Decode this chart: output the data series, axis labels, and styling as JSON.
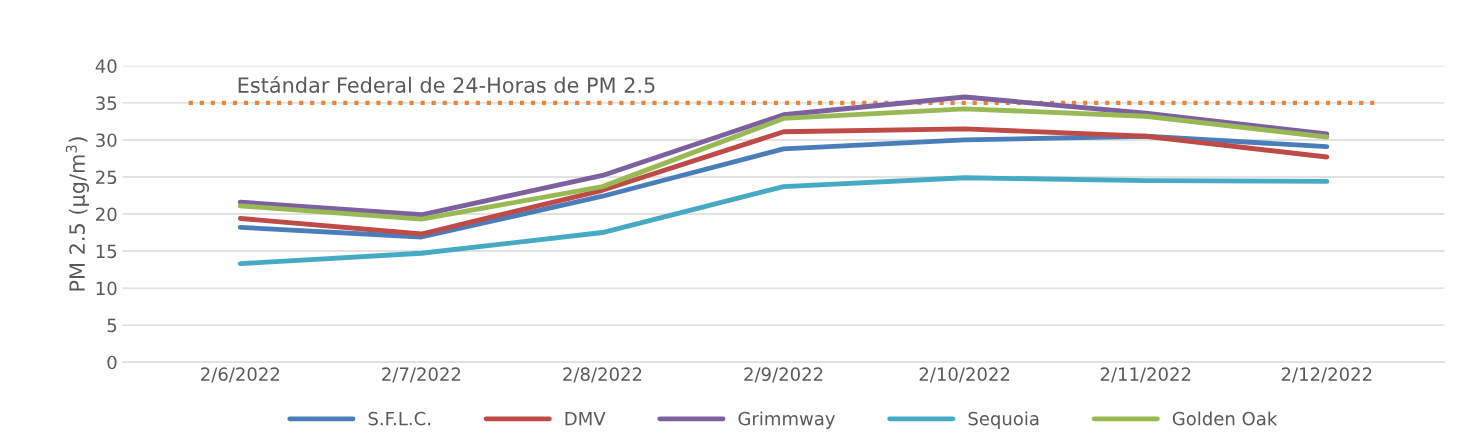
{
  "chart_data": {
    "type": "line",
    "ylabel": "PM 2.5 (µg/m$^{3}$)",
    "categories": [
      "2/6/2022",
      "2/7/2022",
      "2/8/2022",
      "2/9/2022",
      "2/10/2022",
      "2/11/2022",
      "2/12/2022"
    ],
    "series": [
      {
        "name": "S.F.L.C.",
        "color": "#4a7ebb",
        "values": [
          18.2,
          16.9,
          22.4,
          28.8,
          30.0,
          30.5,
          29.1
        ]
      },
      {
        "name": "DMV",
        "color": "#be4b48",
        "values": [
          19.4,
          17.3,
          23.2,
          31.1,
          31.5,
          30.5,
          27.7
        ]
      },
      {
        "name": "Grimmway",
        "color": "#7d60a0",
        "values": [
          21.6,
          19.9,
          25.2,
          33.4,
          35.8,
          33.6,
          30.8
        ]
      },
      {
        "name": "Sequoia",
        "color": "#46aac5",
        "values": [
          13.3,
          14.7,
          17.5,
          23.7,
          24.9,
          24.5,
          24.4
        ]
      },
      {
        "name": "Golden Oak",
        "color": "#98b954",
        "values": [
          21.1,
          19.3,
          23.7,
          32.9,
          34.2,
          33.2,
          30.4
        ]
      }
    ],
    "ylim": [
      0,
      40
    ],
    "yticks": [
      0,
      5,
      10,
      15,
      20,
      25,
      30,
      35,
      40
    ],
    "grid": "y",
    "legend": "bottom",
    "marker": "none",
    "line_style": "solid",
    "ref_lines": [
      {
        "axis": "y",
        "value": 35,
        "label": "Estándar Federal de 24-Horas de PM 2.5",
        "color": "#e8853c",
        "line_style": "dotted"
      }
    ]
  }
}
